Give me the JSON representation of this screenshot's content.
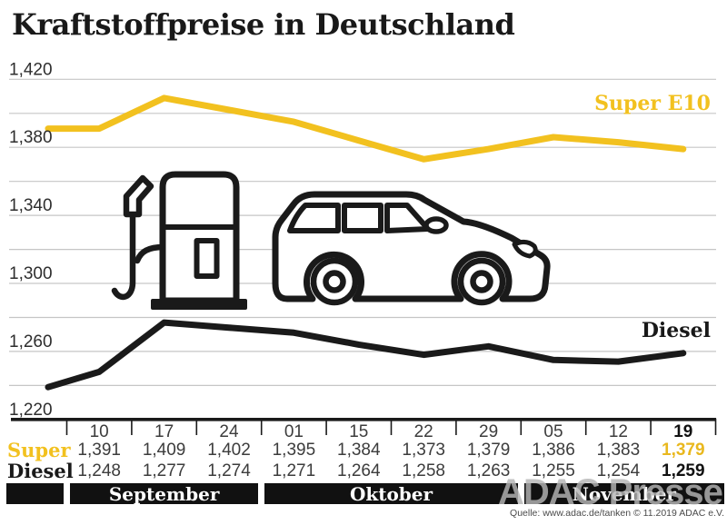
{
  "title": "Kraftstoffpreise in Deutschland",
  "watermark": "ADAC Presse",
  "source": "Quelle: www.adac.de/tanken   © 11.2019   ADAC e.V.",
  "colors": {
    "super": "#F2C11F",
    "diesel": "#1a1a1a",
    "grid": "#c6c6c6",
    "axis": "#1a1a1a",
    "month_bar": "#111111"
  },
  "chart_data": {
    "type": "line",
    "title": "Kraftstoffpreise in Deutschland",
    "x_dates": [
      "10",
      "17",
      "24",
      "01",
      "15",
      "22",
      "29",
      "05",
      "12",
      "19"
    ],
    "months": [
      {
        "label": "September",
        "date_count": 3
      },
      {
        "label": "Oktober",
        "date_count": 4
      },
      {
        "label": "November",
        "date_count": 3
      }
    ],
    "series": [
      {
        "name": "Super E10",
        "color_key": "super",
        "values": [
          1391,
          1409,
          1402,
          1395,
          1384,
          1373,
          1379,
          1386,
          1383,
          1379
        ],
        "lead_in": 1391
      },
      {
        "name": "Diesel",
        "color_key": "diesel",
        "values": [
          1248,
          1277,
          1274,
          1271,
          1264,
          1258,
          1263,
          1255,
          1254,
          1259
        ],
        "lead_in": 1239
      }
    ],
    "y_axis": {
      "min": 1220,
      "max": 1420,
      "minor_step": 20,
      "labeled_values": [
        1420,
        1380,
        1340,
        1300,
        1260,
        1220
      ],
      "labels": [
        "1,420",
        "1,380",
        "1,340",
        "1,300",
        "1,260",
        "1,220"
      ]
    },
    "grid": true,
    "legend_position": "line-end-right"
  },
  "series_labels": {
    "super": "Super E10",
    "diesel": "Diesel"
  },
  "table": {
    "super_label": "Super",
    "diesel_label": "Diesel",
    "dates": [
      "10",
      "17",
      "24",
      "01",
      "15",
      "22",
      "29",
      "05",
      "12",
      "19"
    ],
    "super_values": [
      "1,391",
      "1,409",
      "1,402",
      "1,395",
      "1,384",
      "1,373",
      "1,379",
      "1,386",
      "1,383",
      "1,379"
    ],
    "diesel_values": [
      "1,248",
      "1,277",
      "1,274",
      "1,271",
      "1,264",
      "1,258",
      "1,263",
      "1,255",
      "1,254",
      "1,259"
    ]
  }
}
